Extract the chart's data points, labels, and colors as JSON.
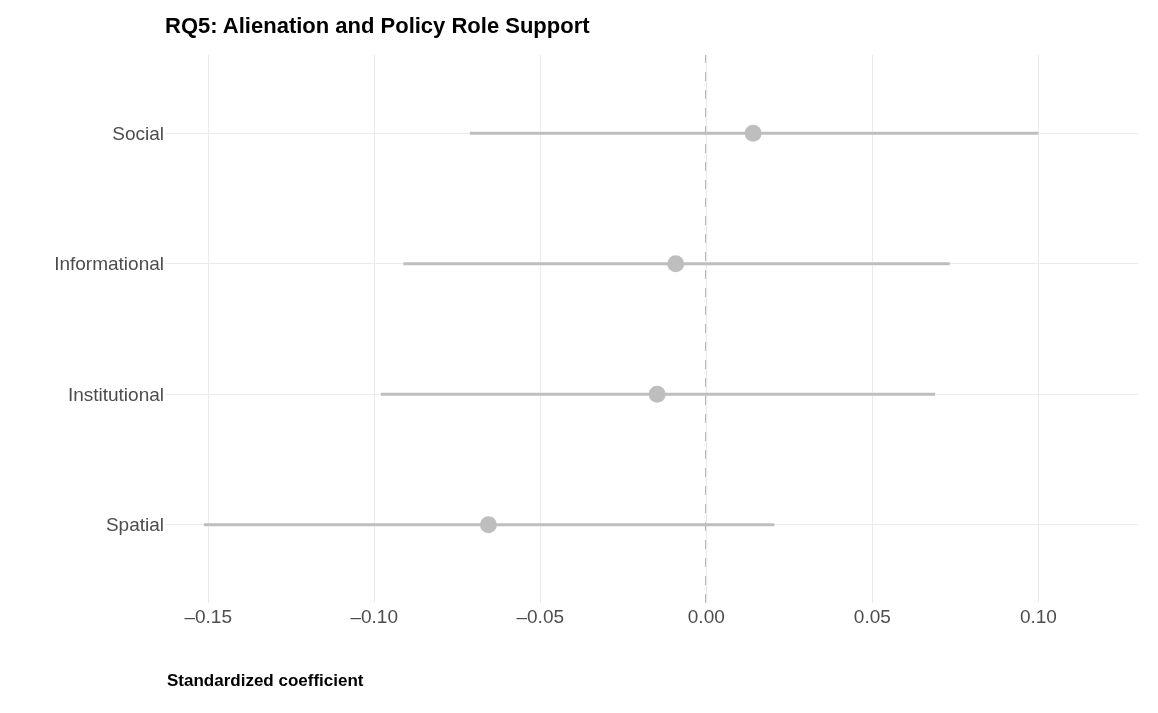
{
  "chart_data": {
    "type": "scatter",
    "orientation": "horizontal",
    "title": "RQ5: Alienation and Policy Role Support",
    "xlabel": "Standardized coefficient",
    "categories": [
      "Social",
      "Informational",
      "Institutional",
      "Spatial"
    ],
    "values": [
      0.0141,
      -0.0092,
      -0.0148,
      -0.0656
    ],
    "errors": [
      [
        -0.0712,
        0.1
      ],
      [
        -0.0912,
        0.0733
      ],
      [
        -0.098,
        0.0689
      ],
      [
        -0.1513,
        0.0205
      ]
    ],
    "color": "#bebebe",
    "marker": "circle",
    "grid": true,
    "legend": false,
    "xlim": [
      -0.163,
      0.13
    ],
    "xticks": [
      {
        "value": -0.15,
        "label": "–0.15"
      },
      {
        "value": -0.1,
        "label": "–0.10"
      },
      {
        "value": -0.05,
        "label": "–0.05"
      },
      "0.00",
      0.05,
      "0.10"
    ],
    "ref_lines": [
      {
        "axis": "x",
        "value": 0,
        "color": "#666666",
        "line_style": "dashed"
      }
    ]
  }
}
